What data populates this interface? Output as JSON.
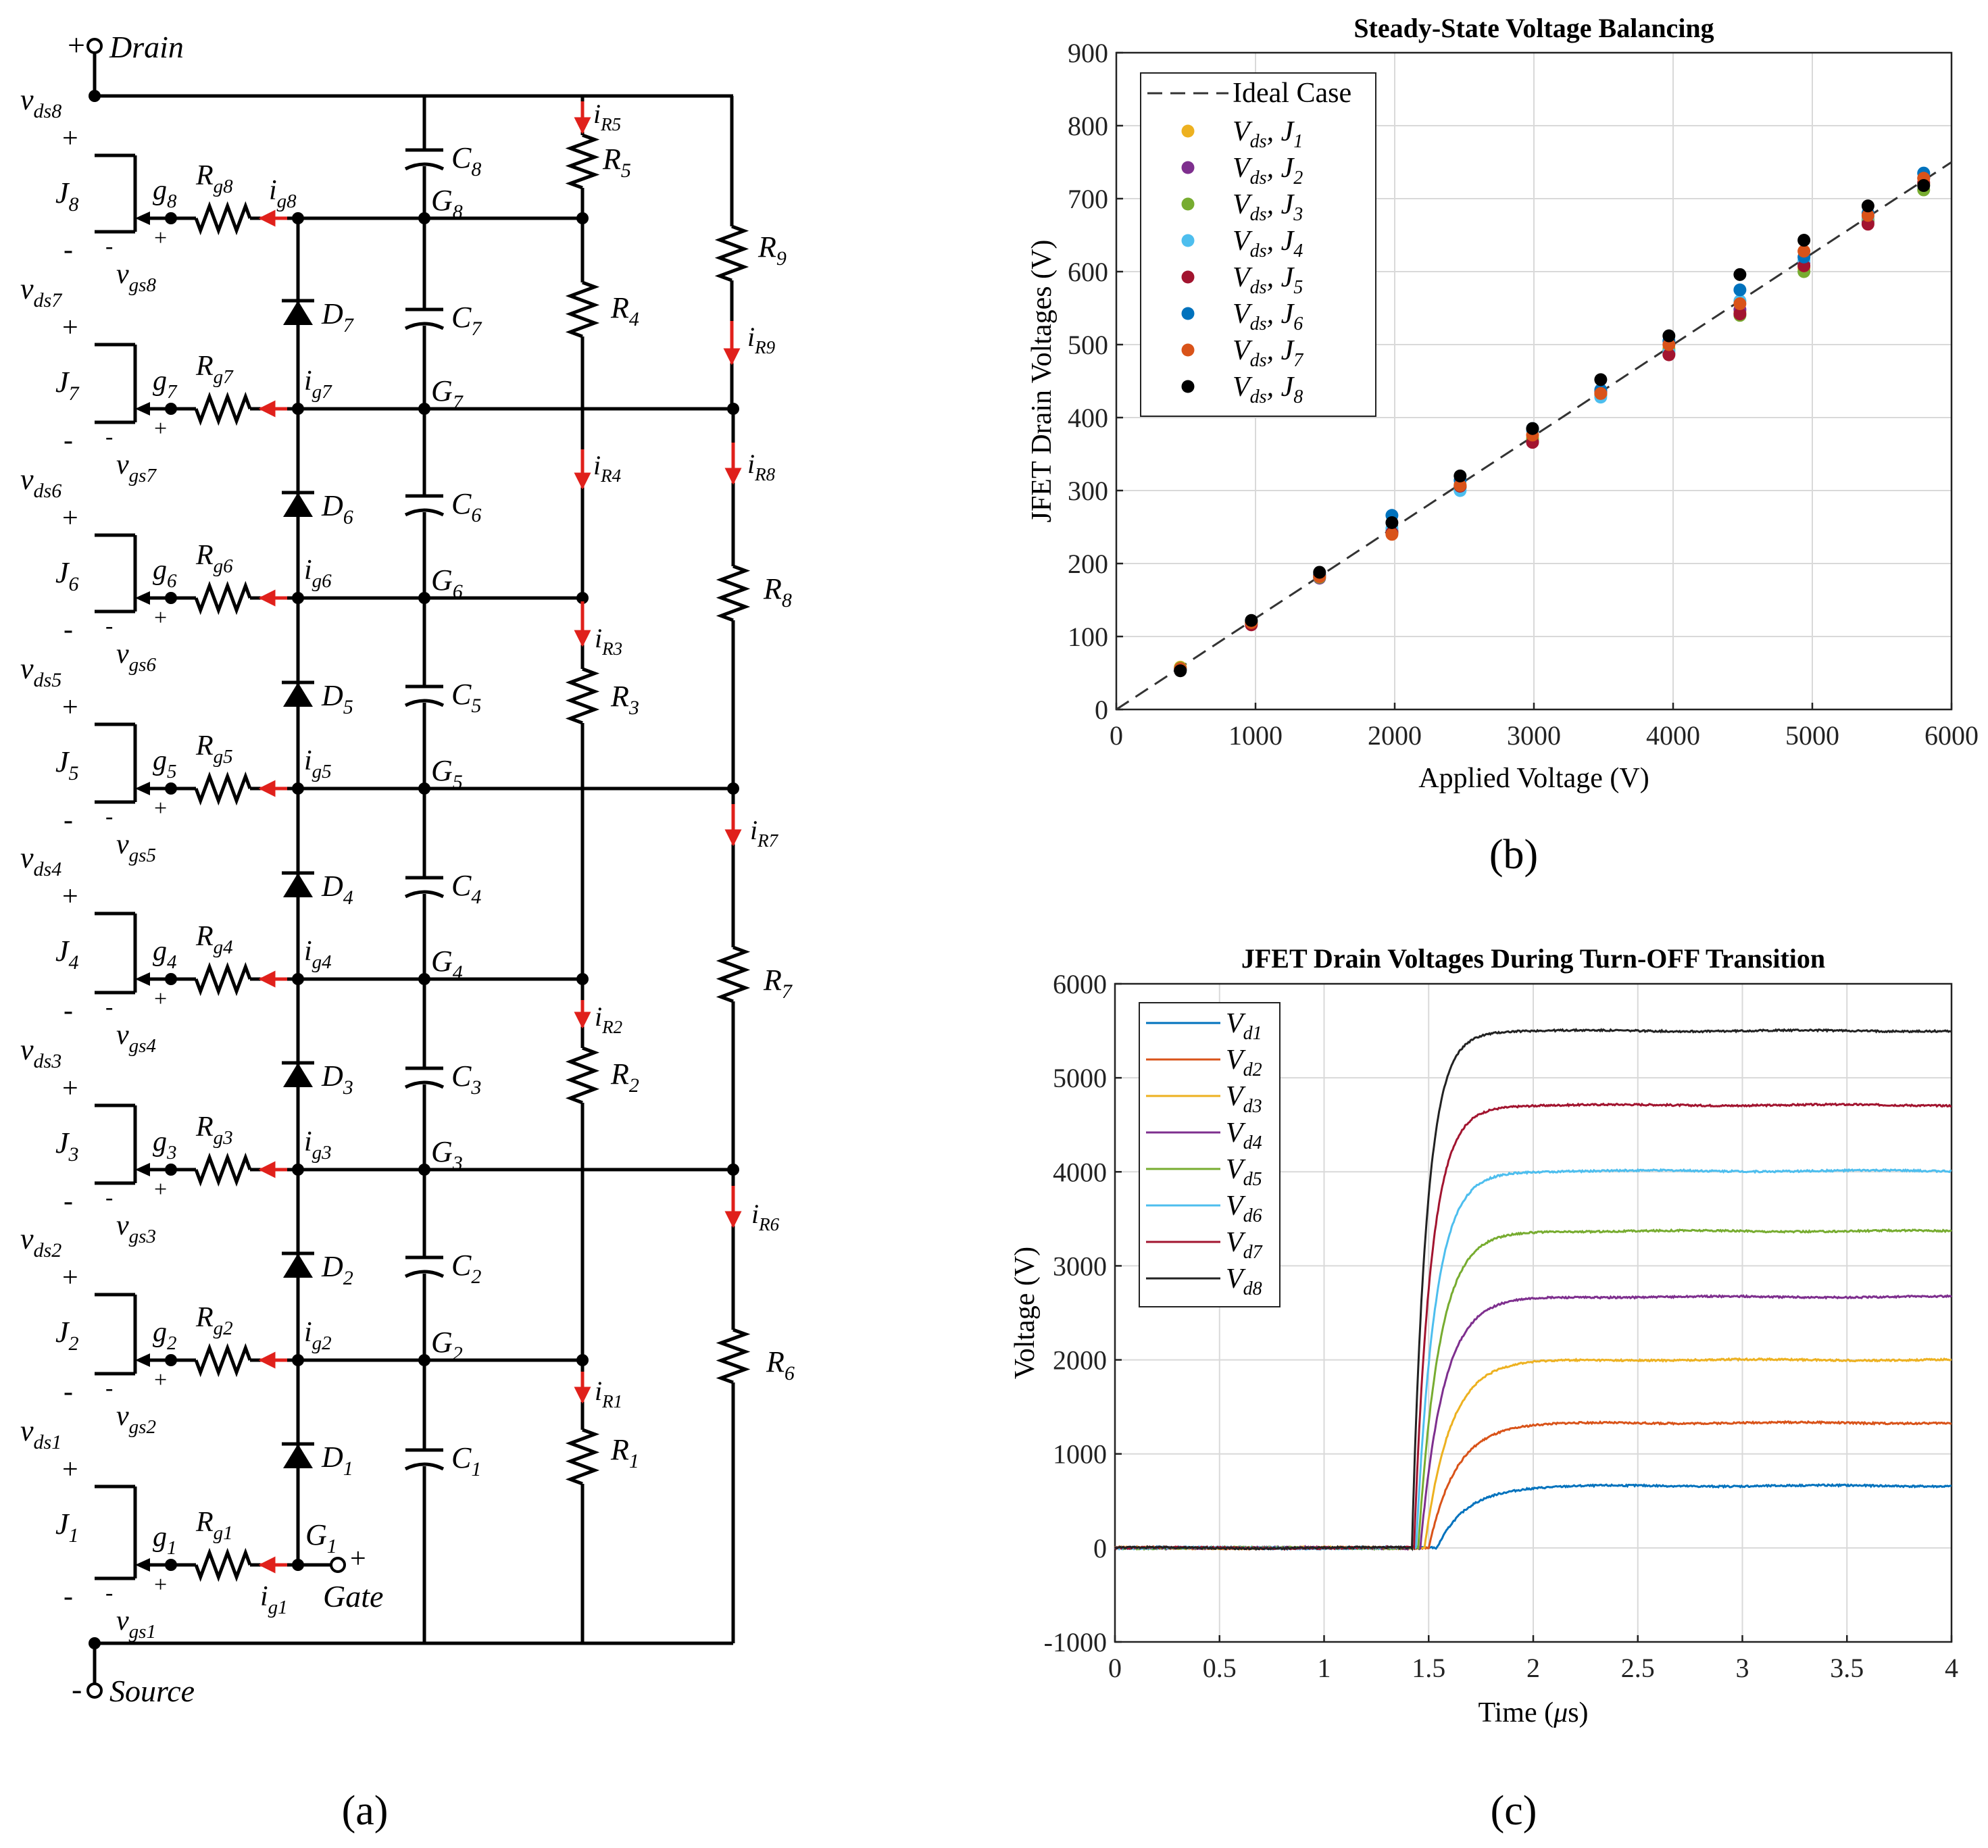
{
  "panel_labels": {
    "a": "(a)",
    "b": "(b)",
    "c": "(c)"
  },
  "circuit": {
    "terminals": {
      "drain": "Drain",
      "source": "Source",
      "gate": "Gate",
      "plus": "+",
      "minus": "-"
    },
    "stages": [
      {
        "j": "J",
        "n": "1",
        "vds": "v",
        "vds_sub": "ds1",
        "vgs": "v",
        "vgs_sub": "gs1",
        "g": "g",
        "g_sub": "1",
        "rg": "R",
        "rg_sub": "g1",
        "ig": "i",
        "ig_sub": "g1",
        "node": "G",
        "node_sub": "1",
        "diode": "D",
        "diode_sub": "1",
        "cap": "C",
        "cap_sub": "1"
      },
      {
        "j": "J",
        "n": "2",
        "vds": "v",
        "vds_sub": "ds2",
        "vgs": "v",
        "vgs_sub": "gs2",
        "g": "g",
        "g_sub": "2",
        "rg": "R",
        "rg_sub": "g2",
        "ig": "i",
        "ig_sub": "g2",
        "node": "G",
        "node_sub": "2",
        "diode": "D",
        "diode_sub": "2",
        "cap": "C",
        "cap_sub": "2"
      },
      {
        "j": "J",
        "n": "3",
        "vds": "v",
        "vds_sub": "ds3",
        "vgs": "v",
        "vgs_sub": "gs3",
        "g": "g",
        "g_sub": "3",
        "rg": "R",
        "rg_sub": "g3",
        "ig": "i",
        "ig_sub": "g3",
        "node": "G",
        "node_sub": "3",
        "diode": "D",
        "diode_sub": "3",
        "cap": "C",
        "cap_sub": "3"
      },
      {
        "j": "J",
        "n": "4",
        "vds": "v",
        "vds_sub": "ds4",
        "vgs": "v",
        "vgs_sub": "gs4",
        "g": "g",
        "g_sub": "4",
        "rg": "R",
        "rg_sub": "g4",
        "ig": "i",
        "ig_sub": "g4",
        "node": "G",
        "node_sub": "4",
        "diode": "D",
        "diode_sub": "4",
        "cap": "C",
        "cap_sub": "4"
      },
      {
        "j": "J",
        "n": "5",
        "vds": "v",
        "vds_sub": "ds5",
        "vgs": "v",
        "vgs_sub": "gs5",
        "g": "g",
        "g_sub": "5",
        "rg": "R",
        "rg_sub": "g5",
        "ig": "i",
        "ig_sub": "g5",
        "node": "G",
        "node_sub": "5",
        "diode": "D",
        "diode_sub": "5",
        "cap": "C",
        "cap_sub": "5"
      },
      {
        "j": "J",
        "n": "6",
        "vds": "v",
        "vds_sub": "ds6",
        "vgs": "v",
        "vgs_sub": "gs6",
        "g": "g",
        "g_sub": "6",
        "rg": "R",
        "rg_sub": "g6",
        "ig": "i",
        "ig_sub": "g6",
        "node": "G",
        "node_sub": "6",
        "diode": "D",
        "diode_sub": "6",
        "cap": "C",
        "cap_sub": "6"
      },
      {
        "j": "J",
        "n": "7",
        "vds": "v",
        "vds_sub": "ds7",
        "vgs": "v",
        "vgs_sub": "gs7",
        "g": "g",
        "g_sub": "7",
        "rg": "R",
        "rg_sub": "g7",
        "ig": "i",
        "ig_sub": "g7",
        "node": "G",
        "node_sub": "7",
        "diode": "D",
        "diode_sub": "7",
        "cap": "C",
        "cap_sub": "7"
      },
      {
        "j": "J",
        "n": "8",
        "vds": "v",
        "vds_sub": "ds8",
        "vgs": "v",
        "vgs_sub": "gs8",
        "g": "g",
        "g_sub": "8",
        "rg": "R",
        "rg_sub": "g8",
        "ig": "i",
        "ig_sub": "g8",
        "node": "G",
        "node_sub": "8",
        "diode": "",
        "diode_sub": "",
        "cap": "C",
        "cap_sub": "8"
      }
    ],
    "resistors": [
      {
        "r": "R",
        "r_sub": "1",
        "i": "i",
        "i_sub": "R1"
      },
      {
        "r": "R",
        "r_sub": "2",
        "i": "i",
        "i_sub": "R2"
      },
      {
        "r": "R",
        "r_sub": "3",
        "i": "i",
        "i_sub": "R3"
      },
      {
        "r": "R",
        "r_sub": "4",
        "i": "i",
        "i_sub": "R4"
      },
      {
        "r": "R",
        "r_sub": "5",
        "i": "i",
        "i_sub": "R5"
      },
      {
        "r": "R",
        "r_sub": "6",
        "i": "i",
        "i_sub": "R6"
      },
      {
        "r": "R",
        "r_sub": "7",
        "i": "i",
        "i_sub": "R7"
      },
      {
        "r": "R",
        "r_sub": "8",
        "i": "i",
        "i_sub": "R8"
      },
      {
        "r": "R",
        "r_sub": "9",
        "i": "i",
        "i_sub": "R9"
      }
    ],
    "colors": {
      "wire": "#000000",
      "current_arrow": "#e0201b"
    }
  },
  "chart_data": [
    {
      "type": "scatter",
      "title": "Steady-State Voltage Balancing",
      "xlabel": "Applied Voltage (V)",
      "ylabel": "JFET Drain Voltages (V)",
      "xlim": [
        0,
        6000
      ],
      "ylim": [
        0,
        900
      ],
      "xticks": [
        0,
        1000,
        2000,
        3000,
        4000,
        5000,
        6000
      ],
      "yticks": [
        0,
        100,
        200,
        300,
        400,
        500,
        600,
        700,
        800,
        900
      ],
      "grid": true,
      "legend_position": "top-left",
      "ideal": {
        "name": "Ideal Case",
        "x": [
          0,
          6000
        ],
        "y": [
          0,
          750
        ],
        "style": "dashed",
        "color": "#333333"
      },
      "x": [
        460,
        970,
        1460,
        1980,
        2470,
        2990,
        3480,
        3970,
        4480,
        4940,
        5400,
        5800
      ],
      "series": [
        {
          "name": "V",
          "sub": "ds",
          "j": "J",
          "jsub": "1",
          "color": "#EDB120",
          "values": [
            58,
            120,
            183,
            245,
            308,
            372,
            432,
            495,
            545,
            605,
            670,
            720
          ]
        },
        {
          "name": "V",
          "sub": "ds",
          "j": "J",
          "jsub": "2",
          "color": "#7E2F8E",
          "values": [
            56,
            118,
            180,
            244,
            305,
            368,
            434,
            488,
            548,
            612,
            668,
            728
          ]
        },
        {
          "name": "V",
          "sub": "ds",
          "j": "J",
          "jsub": "3",
          "color": "#77AC30",
          "values": [
            57,
            119,
            181,
            243,
            304,
            370,
            431,
            492,
            540,
            600,
            672,
            712
          ]
        },
        {
          "name": "V",
          "sub": "ds",
          "j": "J",
          "jsub": "4",
          "color": "#4DBEEE",
          "values": [
            55,
            117,
            182,
            248,
            300,
            382,
            428,
            490,
            560,
            615,
            675,
            735
          ]
        },
        {
          "name": "V",
          "sub": "ds",
          "j": "J",
          "jsub": "5",
          "color": "#A2142F",
          "values": [
            54,
            116,
            184,
            242,
            306,
            366,
            436,
            486,
            542,
            608,
            665,
            722
          ]
        },
        {
          "name": "V",
          "sub": "ds",
          "j": "J",
          "jsub": "6",
          "color": "#0072BD",
          "values": [
            55,
            121,
            185,
            266,
            314,
            385,
            438,
            505,
            575,
            620,
            680,
            735
          ]
        },
        {
          "name": "V",
          "sub": "ds",
          "j": "J",
          "jsub": "7",
          "color": "#D95319",
          "values": [
            56,
            119,
            182,
            240,
            307,
            376,
            433,
            500,
            556,
            628,
            677,
            728
          ]
        },
        {
          "name": "V",
          "sub": "ds",
          "j": "J",
          "jsub": "8",
          "color": "#000000",
          "values": [
            53,
            122,
            188,
            256,
            320,
            385,
            452,
            512,
            596,
            643,
            690,
            718
          ]
        }
      ]
    },
    {
      "type": "line",
      "title": "JFET Drain Voltages During Turn-OFF Transition",
      "xlabel": "Time (μs)",
      "xlabel_parts": {
        "a": "Time (",
        "mu": "μ",
        "b": "s)"
      },
      "ylabel": "Voltage (V)",
      "xlim": [
        0,
        4
      ],
      "ylim": [
        -1000,
        6000
      ],
      "xticks": [
        0,
        0.5,
        1,
        1.5,
        2,
        2.5,
        3,
        3.5,
        4
      ],
      "yticks": [
        -1000,
        0,
        1000,
        2000,
        3000,
        4000,
        5000,
        6000
      ],
      "grid": true,
      "legend_position": "top-left",
      "rise_start_us": 1.4,
      "series": [
        {
          "name": "V",
          "sub": "d1",
          "color": "#0072BD",
          "final": 660,
          "tau_us": 0.14,
          "delay_us": 0.14
        },
        {
          "name": "V",
          "sub": "d2",
          "color": "#D95319",
          "final": 1330,
          "tau_us": 0.13,
          "delay_us": 0.1
        },
        {
          "name": "V",
          "sub": "d3",
          "color": "#EDB120",
          "final": 2000,
          "tau_us": 0.12,
          "delay_us": 0.08
        },
        {
          "name": "V",
          "sub": "d4",
          "color": "#7E2F8E",
          "final": 2670,
          "tau_us": 0.11,
          "delay_us": 0.06
        },
        {
          "name": "V",
          "sub": "d5",
          "color": "#77AC30",
          "final": 3370,
          "tau_us": 0.1,
          "delay_us": 0.05
        },
        {
          "name": "V",
          "sub": "d6",
          "color": "#4DBEEE",
          "final": 4010,
          "tau_us": 0.09,
          "delay_us": 0.04
        },
        {
          "name": "V",
          "sub": "d7",
          "color": "#A2142F",
          "final": 4710,
          "tau_us": 0.08,
          "delay_us": 0.03
        },
        {
          "name": "V",
          "sub": "d8",
          "color": "#222222",
          "final": 5500,
          "tau_us": 0.07,
          "delay_us": 0.02
        }
      ]
    }
  ]
}
